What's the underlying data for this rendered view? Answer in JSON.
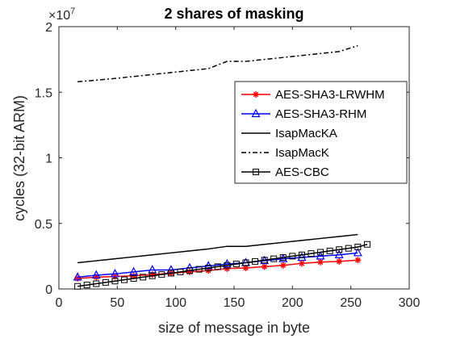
{
  "chart_data": {
    "type": "line",
    "title": "2 shares of masking",
    "xlabel": "size of message in byte",
    "ylabel": "cycles (32-bit ARM)",
    "y_exponent_base": "10",
    "y_exponent_power": "7",
    "xlim": [
      0,
      300
    ],
    "ylim": [
      0,
      20000000
    ],
    "x_ticks": [
      0,
      50,
      100,
      150,
      200,
      250,
      300
    ],
    "y_ticks": [
      0,
      5000000,
      10000000,
      15000000,
      20000000
    ],
    "x_tick_labels": [
      "0",
      "50",
      "100",
      "150",
      "200",
      "250",
      "300"
    ],
    "y_tick_labels": [
      "0",
      "0.5",
      "1",
      "1.5",
      "2"
    ],
    "legend_position": "upper-right inside plot",
    "series": [
      {
        "name": "AES-SHA3-LRWHM",
        "color": "#ff0000",
        "line_style": "solid",
        "marker": "asterisk",
        "x": [
          16,
          32,
          48,
          64,
          80,
          96,
          112,
          128,
          144,
          160,
          176,
          192,
          208,
          224,
          240,
          256
        ],
        "y": [
          800000,
          900000,
          950000,
          1000000,
          1100000,
          1200000,
          1300000,
          1400000,
          1550000,
          1600000,
          1700000,
          1800000,
          1950000,
          2050000,
          2100000,
          2200000
        ]
      },
      {
        "name": "AES-SHA3-RHM",
        "color": "#0000ff",
        "line_style": "solid",
        "marker": "triangle",
        "x": [
          16,
          32,
          48,
          64,
          80,
          96,
          112,
          128,
          144,
          160,
          176,
          192,
          208,
          224,
          240,
          256
        ],
        "y": [
          900000,
          1050000,
          1150000,
          1300000,
          1450000,
          1450000,
          1600000,
          1750000,
          1900000,
          2000000,
          2150000,
          2300000,
          2400000,
          2500000,
          2600000,
          2750000
        ]
      },
      {
        "name": "IsapMacKA",
        "color": "#000000",
        "line_style": "solid",
        "marker": "none",
        "x": [
          16,
          32,
          48,
          64,
          80,
          96,
          112,
          128,
          144,
          160,
          176,
          192,
          208,
          224,
          240,
          256
        ],
        "y": [
          2000000,
          2150000,
          2300000,
          2450000,
          2600000,
          2750000,
          2900000,
          3050000,
          3250000,
          3250000,
          3400000,
          3550000,
          3700000,
          3850000,
          4000000,
          4150000
        ]
      },
      {
        "name": "IsapMacK",
        "color": "#000000",
        "line_style": "dashdot",
        "marker": "none",
        "x": [
          16,
          32,
          48,
          64,
          80,
          96,
          112,
          128,
          144,
          160,
          176,
          192,
          208,
          224,
          240,
          256
        ],
        "y": [
          15800000,
          15920000,
          16050000,
          16200000,
          16350000,
          16500000,
          16650000,
          16800000,
          17350000,
          17350000,
          17500000,
          17650000,
          17800000,
          17950000,
          18100000,
          18550000
        ]
      },
      {
        "name": "AES-CBC",
        "color": "#000000",
        "line_style": "solid",
        "marker": "square",
        "x": [
          16,
          24,
          32,
          40,
          48,
          56,
          64,
          72,
          80,
          88,
          96,
          104,
          112,
          120,
          128,
          136,
          144,
          152,
          160,
          168,
          176,
          184,
          192,
          200,
          208,
          216,
          224,
          232,
          240,
          248,
          256,
          264
        ],
        "y": [
          200000,
          300000,
          400000,
          500000,
          600000,
          700000,
          800000,
          900000,
          1000000,
          1100000,
          1200000,
          1300000,
          1400000,
          1500000,
          1600000,
          1700000,
          1800000,
          1900000,
          2000000,
          2100000,
          2200000,
          2300000,
          2400000,
          2500000,
          2600000,
          2700000,
          2800000,
          2900000,
          3000000,
          3100000,
          3200000,
          3400000
        ]
      }
    ]
  }
}
